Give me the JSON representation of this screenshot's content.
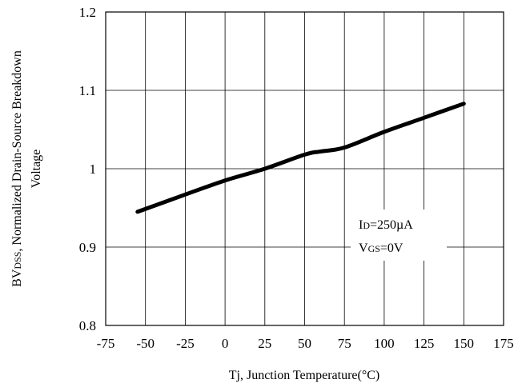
{
  "chart_data": {
    "type": "line",
    "xlabel": "Tj, Junction Temperature(°C)",
    "ylabel_line1": "BVDSS, Normalized Drain-Source Breakdown",
    "ylabel_line2": "Voltage",
    "xlim": [
      -75,
      175
    ],
    "ylim": [
      0.8,
      1.2
    ],
    "grid": true,
    "x_ticks": [
      -75,
      -50,
      -25,
      0,
      25,
      50,
      75,
      100,
      125,
      150,
      175
    ],
    "x_tick_labels": [
      "-75",
      "-50",
      "-25",
      "0",
      "25",
      "50",
      "75",
      "100",
      "125",
      "150",
      "175"
    ],
    "y_ticks": [
      0.8,
      0.9,
      1.0,
      1.1,
      1.2
    ],
    "y_tick_labels": [
      "0.8",
      "0.9",
      "1",
      "1.1",
      "1.2"
    ],
    "series": [
      {
        "x": [
          -55,
          -25,
          0,
          25,
          50,
          60,
          75,
          100,
          125,
          150
        ],
        "y": [
          0.945,
          0.967,
          0.985,
          1.0,
          1.018,
          1.022,
          1.027,
          1.047,
          1.065,
          1.083
        ]
      }
    ],
    "annotation": {
      "line1": "ID=250µA",
      "line2": "VGS=0V"
    }
  }
}
